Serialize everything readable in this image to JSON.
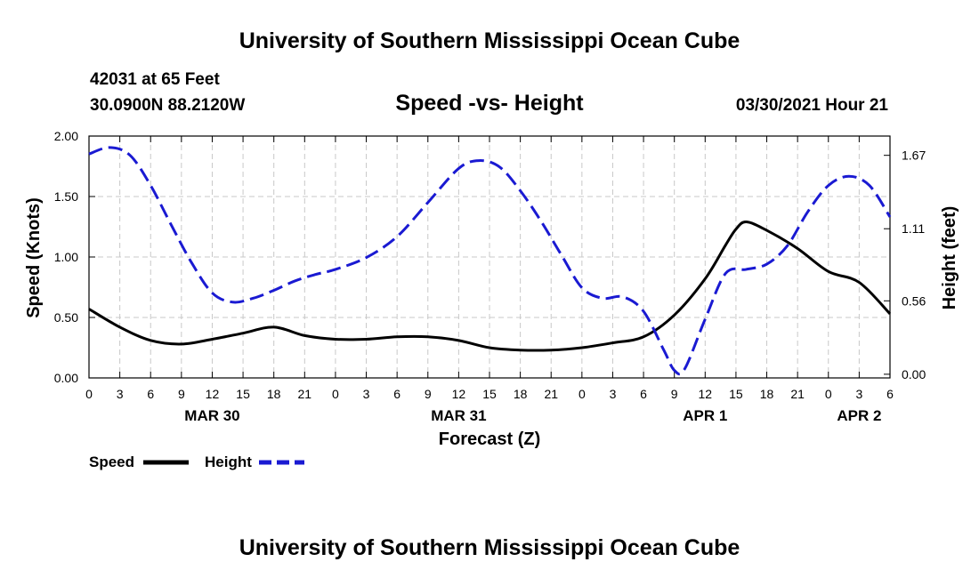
{
  "header": {
    "title": "University of Southern Mississippi Ocean Cube",
    "station": "42031 at 65 Feet",
    "coords": "30.0900N  88.2120W",
    "subtitle": "Speed -vs- Height",
    "datetime": "03/30/2021 Hour 21"
  },
  "footer": {
    "title": "University of Southern Mississippi Ocean Cube"
  },
  "colors": {
    "speed": "#000000",
    "height": "#1a1ad2",
    "grid": "#c8c8c8"
  },
  "chart_data": {
    "type": "line",
    "title": "Speed -vs- Height",
    "xlabel": "Forecast (Z)",
    "ylabel": "Speed (Knots)",
    "y2label": "Height (feet)",
    "x_unit": "forecast hour",
    "xlim": [
      0,
      78
    ],
    "ylim": [
      0,
      2.0
    ],
    "y2lim": [
      -0.028,
      1.817
    ],
    "x_tick_labels": [
      "0",
      "3",
      "6",
      "9",
      "12",
      "15",
      "18",
      "21",
      "0",
      "3",
      "6",
      "9",
      "12",
      "15",
      "18",
      "21",
      "0",
      "3",
      "6",
      "9",
      "12",
      "15",
      "18",
      "21",
      "0",
      "3",
      "6"
    ],
    "date_labels": [
      {
        "label": "MAR 30",
        "x": 12
      },
      {
        "label": "MAR 31",
        "x": 36
      },
      {
        "label": "APR 1",
        "x": 60
      },
      {
        "label": "APR 2",
        "x": 75
      }
    ],
    "y_ticks": [
      0.0,
      0.5,
      1.0,
      1.5,
      2.0
    ],
    "y_tick_labels": [
      "0.00",
      "0.50",
      "1.00",
      "1.50",
      "2.00"
    ],
    "y2_ticks": [
      0.0,
      0.56,
      1.11,
      1.67
    ],
    "y2_tick_labels": [
      "0.00",
      "0.56",
      "1.11",
      "1.67"
    ],
    "series": [
      {
        "name": "Speed",
        "axis": "left",
        "style": "solid",
        "x": [
          0,
          3,
          6,
          9,
          12,
          15,
          18,
          21,
          24,
          27,
          30,
          33,
          36,
          39,
          42,
          45,
          48,
          51,
          54,
          57,
          60,
          62,
          63,
          64,
          66,
          69,
          72,
          75,
          78
        ],
        "values": [
          0.57,
          0.42,
          0.31,
          0.28,
          0.32,
          0.37,
          0.42,
          0.35,
          0.32,
          0.32,
          0.34,
          0.34,
          0.31,
          0.25,
          0.23,
          0.23,
          0.25,
          0.29,
          0.34,
          0.52,
          0.82,
          1.1,
          1.23,
          1.29,
          1.22,
          1.07,
          0.88,
          0.79,
          0.53
        ]
      },
      {
        "name": "Height",
        "axis": "right",
        "style": "dashed",
        "x": [
          0,
          2,
          4,
          6,
          8,
          10,
          12,
          14,
          16,
          18,
          20,
          22,
          24,
          27,
          30,
          33,
          36,
          38,
          40,
          42,
          44,
          46,
          48,
          50,
          52,
          54,
          56,
          57,
          58,
          60,
          62,
          64,
          66,
          68,
          70,
          72,
          74,
          76,
          78
        ],
        "values": [
          1.68,
          1.73,
          1.67,
          1.44,
          1.14,
          0.85,
          0.62,
          0.55,
          0.58,
          0.64,
          0.71,
          0.76,
          0.8,
          0.89,
          1.05,
          1.31,
          1.57,
          1.63,
          1.58,
          1.4,
          1.17,
          0.91,
          0.66,
          0.58,
          0.59,
          0.48,
          0.18,
          0.03,
          0.04,
          0.42,
          0.77,
          0.8,
          0.84,
          0.98,
          1.24,
          1.44,
          1.51,
          1.44,
          1.2
        ]
      }
    ],
    "legend": [
      {
        "label": "Speed",
        "style": "solid"
      },
      {
        "label": "Height",
        "style": "dashed"
      }
    ],
    "legend_position": "bottom-left",
    "grid": true
  }
}
